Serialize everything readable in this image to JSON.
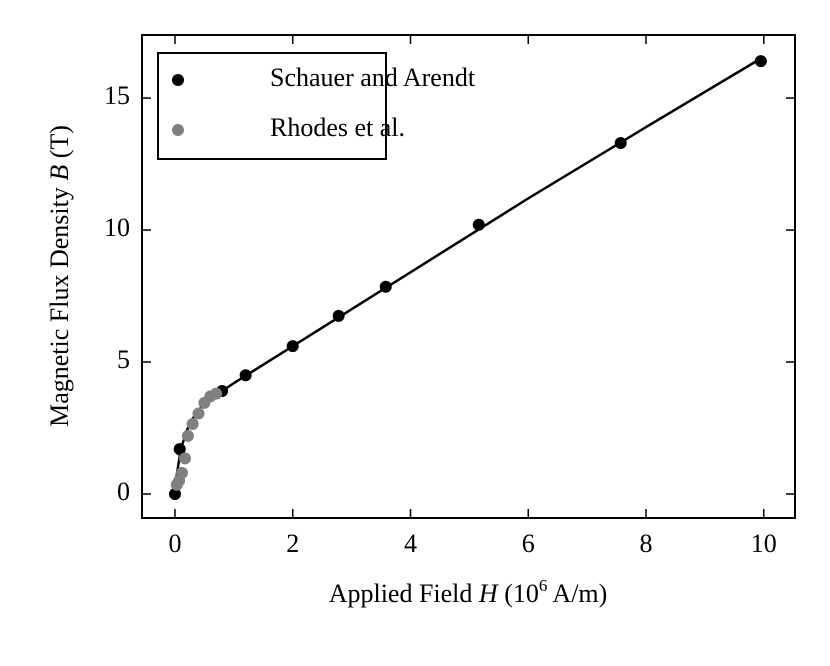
{
  "chart_data": {
    "type": "scatter",
    "xlabel": [
      "Applied Field ",
      "H",
      " (10",
      "6",
      " A/m)"
    ],
    "ylabel": [
      "Magnetic Flux Density ",
      "B",
      " (T)"
    ],
    "xlim": [
      -0.56,
      10.53
    ],
    "ylim": [
      -0.91,
      17.39
    ],
    "xticks": [
      0,
      2,
      4,
      6,
      8,
      10
    ],
    "yticks": [
      0,
      5,
      10,
      15
    ],
    "legend": "upper left",
    "series": [
      {
        "name": "Schauer and Arendt",
        "color": "#000000",
        "style": "points",
        "x": [
          0,
          0.08,
          0.8,
          1.2,
          2,
          2.78,
          3.58,
          5.16,
          7.57,
          9.95
        ],
        "values": [
          0,
          1.7,
          3.9,
          4.5,
          5.6,
          6.75,
          7.85,
          10.2,
          13.3,
          16.4
        ]
      },
      {
        "name": "Rhodes et al.",
        "color": "#808080",
        "style": "points",
        "x": [
          0.03,
          0.07,
          0.12,
          0.17,
          0.22,
          0.3,
          0.4,
          0.5,
          0.6,
          0.7
        ],
        "values": [
          0.35,
          0.5,
          0.8,
          1.35,
          2.2,
          2.65,
          3.05,
          3.45,
          3.7,
          3.8
        ]
      },
      {
        "color": "#000000",
        "style": "line",
        "x": [
          0,
          0.05,
          0.1,
          0.2,
          0.3,
          0.45,
          0.6,
          0.8,
          1,
          2,
          4,
          6,
          8,
          9.95
        ],
        "values": [
          0.3,
          1.0,
          1.7,
          2.4,
          2.85,
          3.3,
          3.6,
          3.9,
          4.2,
          5.6,
          8.4,
          11.2,
          13.9,
          16.5
        ]
      }
    ]
  }
}
